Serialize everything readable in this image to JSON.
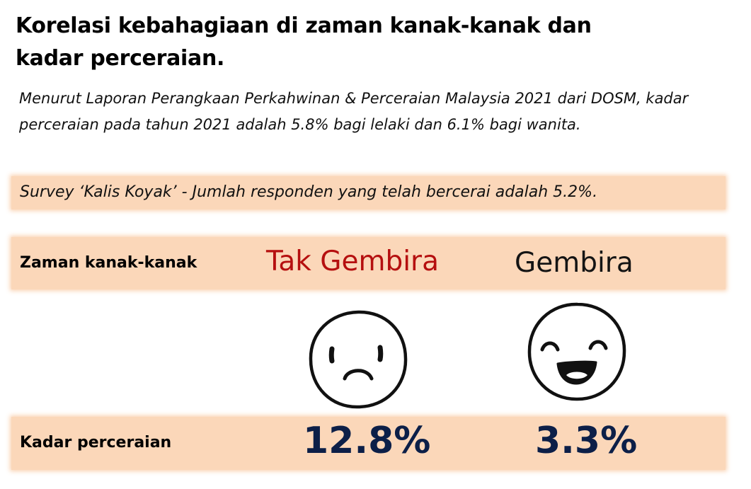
{
  "title": "Korelasi kebahagiaan di zaman kanak-kanak dan kadar perceraian.",
  "intro": "Menurut Laporan Perangkaan Perkahwinan & Perceraian Malaysia 2021 dari DOSM, kadar perceraian pada tahun 2021 adalah 5.8% bagi lelaki dan 6.1% bagi wanita.",
  "survey_note": "Survey ‘Kalis Koyak’ - Jumlah responden yang telah bercerai adalah 5.2%.",
  "rows": {
    "childhood_label": "Zaman kanak-kanak",
    "divorce_label": "Kadar perceraian"
  },
  "columns": [
    {
      "heading": "Tak Gembira",
      "rate": "12.8%",
      "icon": "sad-face-icon",
      "heading_color": "#b50f0f"
    },
    {
      "heading": "Gembira",
      "rate": "3.3%",
      "icon": "happy-face-icon",
      "heading_color": "#141414"
    }
  ],
  "colors": {
    "band": "#fbd7b9",
    "rate_text": "#0c1f48"
  }
}
